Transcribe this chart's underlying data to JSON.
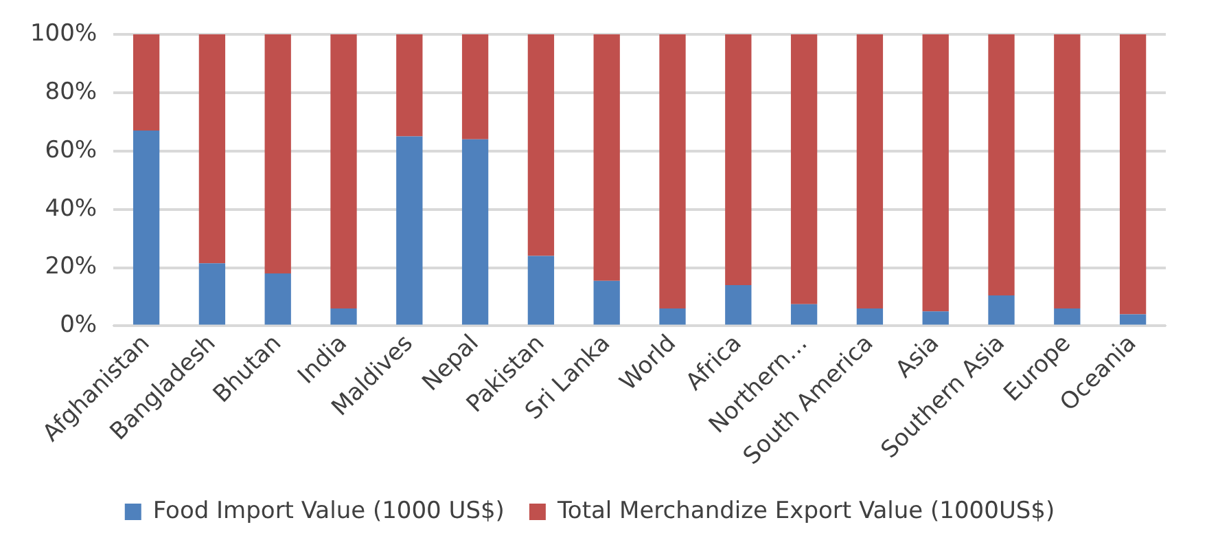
{
  "chart_data": {
    "type": "bar",
    "stacked": true,
    "categories": [
      "Afghanistan",
      "Bangladesh",
      "Bhutan",
      "India",
      "Maldives",
      "Nepal",
      "Pakistan",
      "Sri Lanka",
      "World",
      "Africa",
      "Northern…",
      "South America",
      "Asia",
      "Southern Asia",
      "Europe",
      "Oceania"
    ],
    "series": [
      {
        "name": "Food Import Value (1000 US$)",
        "color": "#4f81bd",
        "values": [
          67,
          21.5,
          18,
          6,
          65,
          64,
          24,
          15.5,
          6,
          14,
          7.5,
          6,
          5,
          10.5,
          6,
          4
        ]
      },
      {
        "name": "Total Merchandize Export Value (1000US$)",
        "color": "#c0504d",
        "values": [
          33,
          78.5,
          82,
          94,
          35,
          36,
          76,
          84.5,
          94,
          86,
          92.5,
          94,
          95,
          89.5,
          94,
          96
        ]
      }
    ],
    "ylim": [
      0,
      100
    ],
    "yticks": [
      {
        "value": 0,
        "label": "0%"
      },
      {
        "value": 20,
        "label": "20%"
      },
      {
        "value": 40,
        "label": "40%"
      },
      {
        "value": 60,
        "label": "60%"
      },
      {
        "value": 80,
        "label": "80%"
      },
      {
        "value": 100,
        "label": "100%"
      }
    ],
    "grid": "y",
    "legend": "bottom"
  }
}
